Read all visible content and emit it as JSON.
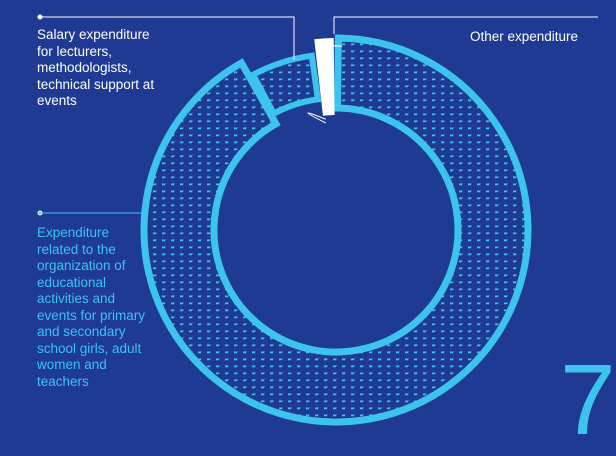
{
  "chart_data": {
    "type": "pie",
    "title": "",
    "categories": [
      "Expenditure related to the organization of educational activities and events for primary and secondary school girls, adult women and teachers",
      "Salary expenditure for lecturers, methodologists, technical support at events",
      "Other expenditure"
    ],
    "values": [
      92,
      6,
      2
    ],
    "colors": [
      "#3cc3ee",
      "#ffffff",
      "#ffffff"
    ],
    "legend": "outside-left",
    "grid": false
  },
  "labels": {
    "salary": "Salary expenditure for lecturers, methodologists, technical support at events",
    "education": "Expenditure related to the organization of educational activities and events for primary and secondary school girls, adult women and teachers",
    "other": "Other expenditure"
  },
  "big_number": "7",
  "colors": {
    "background": "#1f3a93",
    "accent": "#3cc3ee",
    "white": "#ffffff"
  }
}
